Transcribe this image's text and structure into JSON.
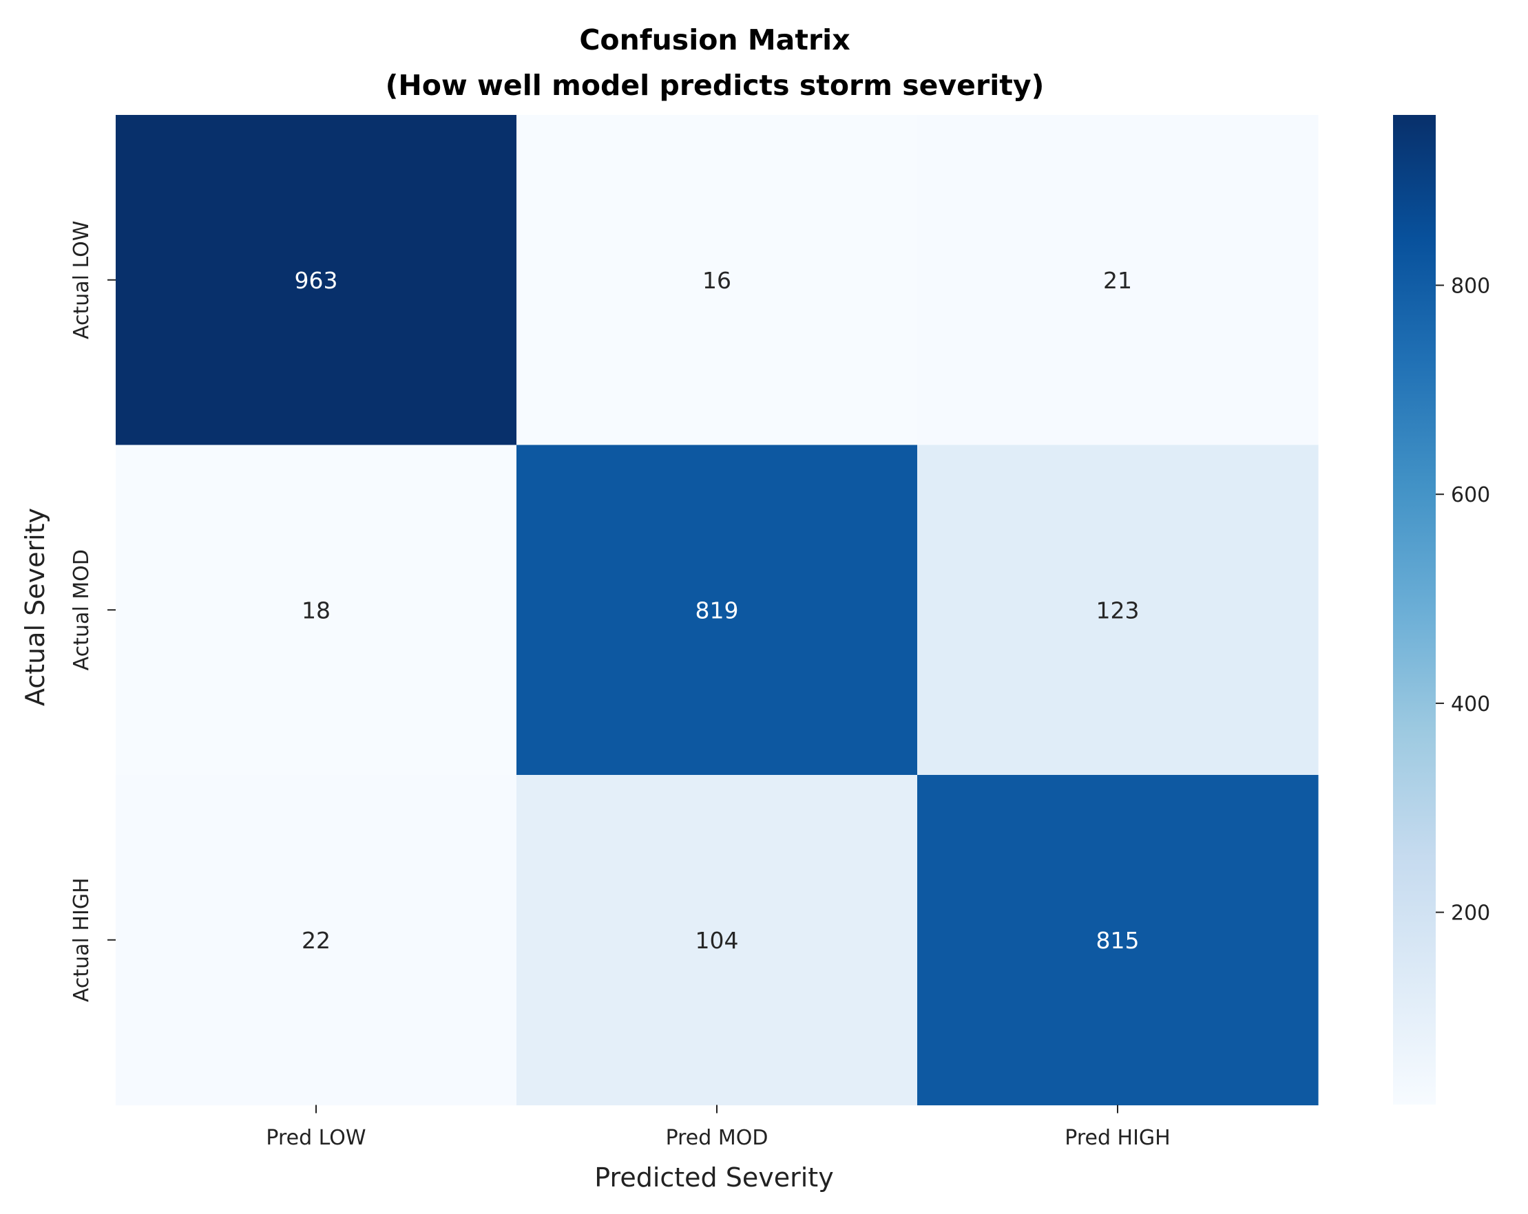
{
  "chart_data": {
    "type": "heatmap",
    "title_lines": [
      "Confusion Matrix",
      "(How well model predicts storm severity)"
    ],
    "xlabel": "Predicted Severity",
    "ylabel": "Actual Severity",
    "x_categories": [
      "Pred LOW",
      "Pred MOD",
      "Pred HIGH"
    ],
    "y_categories": [
      "Actual LOW",
      "Actual MOD",
      "Actual HIGH"
    ],
    "values": [
      [
        963,
        16,
        21
      ],
      [
        18,
        819,
        123
      ],
      [
        22,
        104,
        815
      ]
    ],
    "colormap": "Blues",
    "color_range": [
      16,
      963
    ],
    "colorbar_ticks": [
      200,
      400,
      600,
      800
    ],
    "grid": false
  }
}
